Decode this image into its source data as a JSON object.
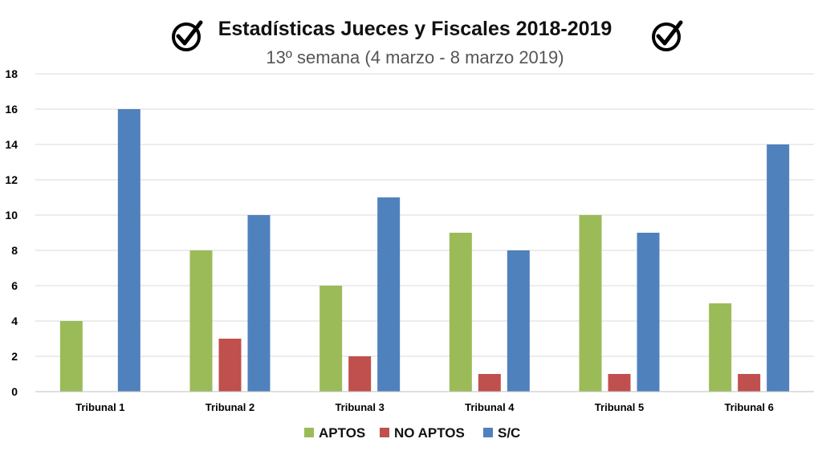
{
  "chart_data": {
    "type": "bar",
    "title": "Estadísticas Jueces y Fiscales 2018-2019",
    "subtitle": "13º semana (4 marzo - 8 marzo 2019)",
    "categories": [
      "Tribunal 1",
      "Tribunal 2",
      "Tribunal 3",
      "Tribunal 4",
      "Tribunal 5",
      "Tribunal 6"
    ],
    "series": [
      {
        "name": "APTOS",
        "color": "#9BBB59",
        "values": [
          4,
          8,
          6,
          9,
          10,
          5
        ]
      },
      {
        "name": "NO APTOS",
        "color": "#C0504D",
        "values": [
          0,
          3,
          2,
          1,
          1,
          1
        ]
      },
      {
        "name": "S/C",
        "color": "#4F81BD",
        "values": [
          16,
          10,
          11,
          8,
          9,
          14
        ]
      }
    ],
    "ylim": [
      0,
      18
    ],
    "yticks": [
      "0",
      "2",
      "4",
      "6",
      "8",
      "10",
      "12",
      "14",
      "16",
      "18"
    ],
    "grid": true,
    "legend_position": "bottom",
    "title_icons": [
      "check-circle-icon",
      "check-circle-icon"
    ]
  }
}
